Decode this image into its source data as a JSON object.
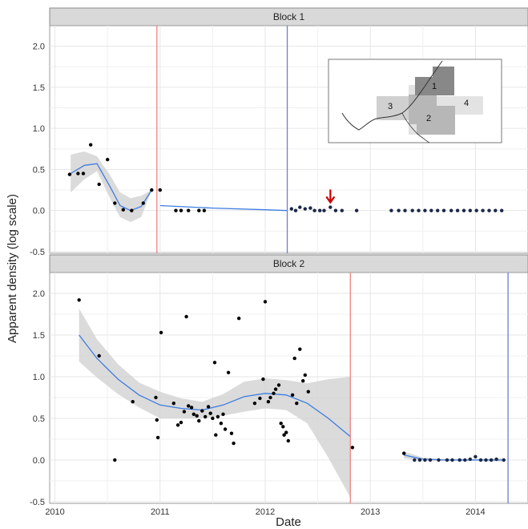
{
  "chart_data": {
    "type": "scatter",
    "ylabel": "Apparent density (log scale)",
    "xlabel": "Date",
    "xlim": [
      2009.95,
      2014.5
    ],
    "x_ticks": [
      "2010",
      "2011",
      "2012",
      "2013",
      "2014"
    ],
    "ylim": [
      -0.52,
      2.25
    ],
    "y_ticks": [
      "-0.5",
      "0.0",
      "0.5",
      "1.0",
      "1.5",
      "2.0"
    ],
    "grid": true,
    "facets": [
      {
        "title": "Block 1",
        "vlines": [
          {
            "x": 2010.97,
            "color": "#f08080"
          },
          {
            "x": 2012.21,
            "color": "#6b7fd7"
          }
        ],
        "points": [
          [
            2010.14,
            0.44
          ],
          [
            2010.22,
            0.45
          ],
          [
            2010.27,
            0.45
          ],
          [
            2010.34,
            0.8
          ],
          [
            2010.42,
            0.32
          ],
          [
            2010.5,
            0.62
          ],
          [
            2010.57,
            0.09
          ],
          [
            2010.65,
            0.01
          ],
          [
            2010.73,
            0.0
          ],
          [
            2010.84,
            0.09
          ],
          [
            2010.92,
            0.25
          ],
          [
            2011.0,
            0.25
          ],
          [
            2011.15,
            0.0
          ],
          [
            2011.2,
            0.0
          ],
          [
            2011.27,
            0.0
          ],
          [
            2011.37,
            0.0
          ],
          [
            2011.42,
            0.0
          ],
          [
            2012.25,
            0.02
          ],
          [
            2012.29,
            0.0
          ],
          [
            2012.33,
            0.04
          ],
          [
            2012.38,
            0.02
          ],
          [
            2012.43,
            0.03
          ],
          [
            2012.47,
            0.0
          ],
          [
            2012.52,
            0.0
          ],
          [
            2012.56,
            0.0
          ],
          [
            2012.62,
            0.04
          ],
          [
            2012.67,
            0.0
          ],
          [
            2012.73,
            0.0
          ],
          [
            2012.87,
            0.0
          ],
          [
            2013.2,
            0.0
          ],
          [
            2013.27,
            0.0
          ],
          [
            2013.33,
            0.0
          ],
          [
            2013.4,
            0.0
          ],
          [
            2013.46,
            0.0
          ],
          [
            2013.52,
            0.0
          ],
          [
            2013.58,
            0.0
          ],
          [
            2013.64,
            0.0
          ],
          [
            2013.7,
            0.0
          ],
          [
            2013.77,
            0.0
          ],
          [
            2013.83,
            0.0
          ],
          [
            2013.89,
            0.0
          ],
          [
            2013.95,
            0.0
          ],
          [
            2014.01,
            0.0
          ],
          [
            2014.07,
            0.0
          ],
          [
            2014.13,
            0.0
          ],
          [
            2014.19,
            0.0
          ],
          [
            2014.25,
            0.0
          ]
        ],
        "fit": [
          [
            2010.15,
            0.45
          ],
          [
            2010.28,
            0.55
          ],
          [
            2010.4,
            0.57
          ],
          [
            2010.52,
            0.3
          ],
          [
            2010.62,
            0.06
          ],
          [
            2010.72,
            0.0
          ],
          [
            2010.82,
            0.05
          ],
          [
            2010.92,
            0.25
          ],
          null,
          [
            2011.0,
            0.06
          ],
          [
            2011.5,
            0.03
          ],
          [
            2012.0,
            0.01
          ],
          [
            2012.21,
            0.0
          ]
        ],
        "band_upper": [
          [
            2010.15,
            0.68
          ],
          [
            2010.28,
            0.72
          ],
          [
            2010.4,
            0.66
          ],
          [
            2010.52,
            0.44
          ],
          [
            2010.62,
            0.22
          ],
          [
            2010.72,
            0.15
          ],
          [
            2010.82,
            0.18
          ],
          [
            2010.92,
            0.25
          ]
        ],
        "band_lower": [
          [
            2010.15,
            0.22
          ],
          [
            2010.28,
            0.38
          ],
          [
            2010.4,
            0.48
          ],
          [
            2010.52,
            0.16
          ],
          [
            2010.62,
            -0.08
          ],
          [
            2010.72,
            -0.14
          ],
          [
            2010.82,
            -0.08
          ],
          [
            2010.92,
            0.25
          ]
        ],
        "annotation": {
          "type": "arrow",
          "x": 2012.62,
          "y": 0.1,
          "color": "#cc0000"
        },
        "inset": {
          "labels": [
            "1",
            "2",
            "3",
            "4"
          ]
        }
      },
      {
        "title": "Block 2",
        "vlines": [
          {
            "x": 2012.81,
            "color": "#f08080"
          },
          {
            "x": 2014.31,
            "color": "#6b7fd7"
          }
        ],
        "points": [
          [
            2010.23,
            1.92
          ],
          [
            2010.42,
            1.25
          ],
          [
            2010.57,
            0.0
          ],
          [
            2010.74,
            0.7
          ],
          [
            2010.96,
            0.75
          ],
          [
            2010.97,
            0.48
          ],
          [
            2010.98,
            0.27
          ],
          [
            2011.01,
            1.53
          ],
          [
            2011.13,
            0.68
          ],
          [
            2011.17,
            0.42
          ],
          [
            2011.2,
            0.45
          ],
          [
            2011.23,
            0.58
          ],
          [
            2011.25,
            1.72
          ],
          [
            2011.27,
            0.65
          ],
          [
            2011.3,
            0.63
          ],
          [
            2011.32,
            0.55
          ],
          [
            2011.35,
            0.53
          ],
          [
            2011.37,
            0.47
          ],
          [
            2011.4,
            0.59
          ],
          [
            2011.43,
            0.52
          ],
          [
            2011.46,
            0.64
          ],
          [
            2011.48,
            0.56
          ],
          [
            2011.5,
            0.5
          ],
          [
            2011.52,
            1.17
          ],
          [
            2011.53,
            0.3
          ],
          [
            2011.55,
            0.52
          ],
          [
            2011.58,
            0.44
          ],
          [
            2011.6,
            0.55
          ],
          [
            2011.62,
            0.37
          ],
          [
            2011.65,
            1.05
          ],
          [
            2011.68,
            0.32
          ],
          [
            2011.7,
            0.2
          ],
          [
            2011.75,
            1.7
          ],
          [
            2011.9,
            0.68
          ],
          [
            2011.95,
            0.74
          ],
          [
            2011.98,
            0.97
          ],
          [
            2012.0,
            1.9
          ],
          [
            2012.03,
            0.7
          ],
          [
            2012.05,
            0.75
          ],
          [
            2012.08,
            0.8
          ],
          [
            2012.1,
            0.85
          ],
          [
            2012.13,
            0.9
          ],
          [
            2012.15,
            0.44
          ],
          [
            2012.17,
            0.4
          ],
          [
            2012.18,
            0.3
          ],
          [
            2012.2,
            0.33
          ],
          [
            2012.22,
            0.23
          ],
          [
            2012.26,
            0.78
          ],
          [
            2012.28,
            1.22
          ],
          [
            2012.3,
            0.68
          ],
          [
            2012.33,
            1.33
          ],
          [
            2012.36,
            0.95
          ],
          [
            2012.38,
            1.02
          ],
          [
            2012.41,
            0.82
          ],
          [
            2012.83,
            0.15
          ],
          [
            2013.32,
            0.08
          ],
          [
            2013.42,
            0.0
          ],
          [
            2013.47,
            0.0
          ],
          [
            2013.52,
            0.0
          ],
          [
            2013.57,
            0.0
          ],
          [
            2013.65,
            0.0
          ],
          [
            2013.73,
            0.0
          ],
          [
            2013.78,
            0.0
          ],
          [
            2013.85,
            0.0
          ],
          [
            2013.9,
            0.0
          ],
          [
            2013.95,
            0.01
          ],
          [
            2014.0,
            0.04
          ],
          [
            2014.05,
            0.0
          ],
          [
            2014.1,
            0.0
          ],
          [
            2014.15,
            0.0
          ],
          [
            2014.2,
            0.01
          ],
          [
            2014.27,
            0.0
          ]
        ],
        "fit": [
          [
            2010.23,
            1.5
          ],
          [
            2010.4,
            1.22
          ],
          [
            2010.6,
            0.97
          ],
          [
            2010.8,
            0.78
          ],
          [
            2011.0,
            0.66
          ],
          [
            2011.2,
            0.62
          ],
          [
            2011.4,
            0.6
          ],
          [
            2011.6,
            0.66
          ],
          [
            2011.8,
            0.76
          ],
          [
            2012.0,
            0.8
          ],
          [
            2012.2,
            0.78
          ],
          [
            2012.4,
            0.68
          ],
          [
            2012.6,
            0.5
          ],
          [
            2012.81,
            0.28
          ],
          null,
          [
            2013.32,
            0.06
          ],
          [
            2013.5,
            0.01
          ],
          [
            2013.7,
            0.0
          ],
          [
            2014.0,
            0.0
          ],
          [
            2014.27,
            0.0
          ]
        ],
        "band_upper": [
          [
            2010.23,
            1.82
          ],
          [
            2010.4,
            1.45
          ],
          [
            2010.6,
            1.15
          ],
          [
            2010.8,
            0.93
          ],
          [
            2011.0,
            0.82
          ],
          [
            2011.2,
            0.74
          ],
          [
            2011.4,
            0.7
          ],
          [
            2011.6,
            0.79
          ],
          [
            2011.8,
            0.94
          ],
          [
            2012.0,
            0.98
          ],
          [
            2012.2,
            0.96
          ],
          [
            2012.4,
            0.92
          ],
          [
            2012.6,
            0.97
          ],
          [
            2012.81,
            1.0
          ]
        ],
        "band_lower": [
          [
            2010.23,
            1.18
          ],
          [
            2010.4,
            0.99
          ],
          [
            2010.6,
            0.79
          ],
          [
            2010.8,
            0.63
          ],
          [
            2011.0,
            0.5
          ],
          [
            2011.2,
            0.5
          ],
          [
            2011.4,
            0.5
          ],
          [
            2011.6,
            0.53
          ],
          [
            2011.8,
            0.58
          ],
          [
            2012.0,
            0.62
          ],
          [
            2012.2,
            0.6
          ],
          [
            2012.4,
            0.44
          ],
          [
            2012.6,
            0.03
          ],
          [
            2012.81,
            -0.45
          ]
        ],
        "band2_upper": [
          [
            2013.32,
            0.1
          ],
          [
            2013.5,
            0.03
          ],
          [
            2013.7,
            0.01
          ],
          [
            2014.0,
            0.01
          ],
          [
            2014.27,
            0.02
          ]
        ],
        "band2_lower": [
          [
            2013.32,
            0.02
          ],
          [
            2013.5,
            -0.01
          ],
          [
            2013.7,
            -0.01
          ],
          [
            2014.0,
            -0.01
          ],
          [
            2014.27,
            -0.02
          ]
        ]
      }
    ],
    "colors": {
      "panel_bg": "#ffffff",
      "strip_bg": "#d9d9d9",
      "grid": "#e6e6e6",
      "point": "#000000",
      "point_late": "#1a2747",
      "fit": "#3d7ce0",
      "band": "#cfcfcf",
      "red_line": "#f08080",
      "blue_line": "#6b7fd7",
      "arrow": "#cc0000"
    }
  }
}
